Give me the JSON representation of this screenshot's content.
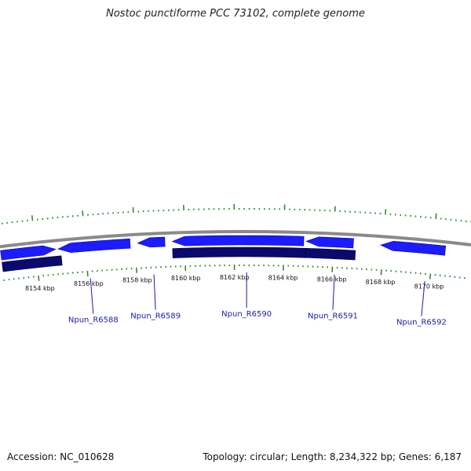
{
  "title": "Nostoc punctiforme PCC 73102, complete genome",
  "footer": {
    "accession": "Accession: NC_010628",
    "summary": "Topology: circular; Length: 8,234,322 bp; Genes: 6,187"
  },
  "colors": {
    "backbone": "#8a8a8a",
    "forward_gene": "#1c1cff",
    "reverse_gene": "#0a0a6e",
    "tick": "#2e8b2e",
    "label_line": "#1a1aa8",
    "label_text": "#1a1aa8"
  },
  "view": {
    "start_kbp": 8152.6,
    "end_kbp": 8171.5
  },
  "scale_labels": [
    {
      "kbp": 8154,
      "text": "8154 kbp"
    },
    {
      "kbp": 8156,
      "text": "8156 kbp"
    },
    {
      "kbp": 8158,
      "text": "8158 kbp"
    },
    {
      "kbp": 8160,
      "text": "8160 kbp"
    },
    {
      "kbp": 8162,
      "text": "8162 kbp"
    },
    {
      "kbp": 8164,
      "text": "8164 kbp"
    },
    {
      "kbp": 8166,
      "text": "8166 kbp"
    },
    {
      "kbp": 8168,
      "text": "8168 kbp"
    },
    {
      "kbp": 8170,
      "text": "8170 kbp"
    }
  ],
  "forward_genes": [
    {
      "start_kbp": 8152.6,
      "end_kbp": 8154.8,
      "direction": "right"
    },
    {
      "start_kbp": 8154.9,
      "end_kbp": 8157.8,
      "direction": "left"
    },
    {
      "start_kbp": 8158.1,
      "end_kbp": 8159.2,
      "direction": "left"
    },
    {
      "start_kbp": 8159.5,
      "end_kbp": 8164.8,
      "direction": "left"
    },
    {
      "start_kbp": 8164.9,
      "end_kbp": 8166.8,
      "direction": "left"
    },
    {
      "start_kbp": 8167.9,
      "end_kbp": 8170.5,
      "direction": "left"
    }
  ],
  "reverse_genes": [
    {
      "start_kbp": 8152.6,
      "end_kbp": 8155.0
    },
    {
      "start_kbp": 8159.5,
      "end_kbp": 8164.9
    },
    {
      "start_kbp": 8164.9,
      "end_kbp": 8166.9
    }
  ],
  "gene_labels": [
    {
      "name": "Npun_R6588",
      "kbp": 8156.1
    },
    {
      "name": "Npun_R6589",
      "kbp": 8158.7
    },
    {
      "name": "Npun_R6590",
      "kbp": 8162.5
    },
    {
      "name": "Npun_R6591",
      "kbp": 8166.1
    },
    {
      "name": "Npun_R6592",
      "kbp": 8169.8
    }
  ]
}
